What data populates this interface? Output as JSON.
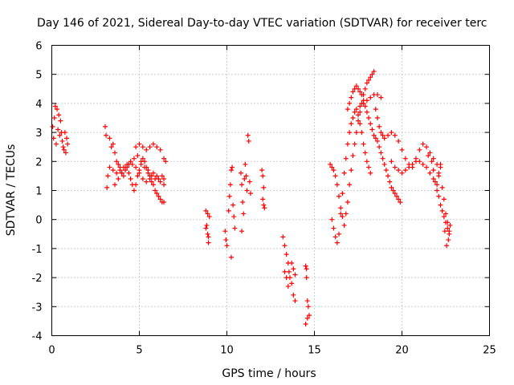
{
  "chart_data": {
    "type": "scatter",
    "title": "Day 146 of 2021, Sidereal Day-to-day VTEC variation (SDTVAR) for receiver terc",
    "xlabel": "GPS time / hours",
    "ylabel": "SDTVAR / TECUs",
    "xlim": [
      0,
      25
    ],
    "ylim": [
      -4,
      6
    ],
    "xticks": [
      0,
      5,
      10,
      15,
      20,
      25
    ],
    "yticks": [
      -4,
      -3,
      -2,
      -1,
      0,
      1,
      2,
      3,
      4,
      5,
      6
    ],
    "grid": true,
    "marker": "+",
    "color": "#ff0000",
    "series": [
      {
        "name": "SDTVAR",
        "points": [
          [
            0.05,
            3.2
          ],
          [
            0.1,
            2.8
          ],
          [
            0.15,
            3.5
          ],
          [
            0.2,
            3.9
          ],
          [
            0.25,
            2.6
          ],
          [
            0.3,
            3.8
          ],
          [
            0.35,
            3.1
          ],
          [
            0.4,
            3.6
          ],
          [
            0.45,
            2.9
          ],
          [
            0.5,
            3.4
          ],
          [
            0.55,
            3.0
          ],
          [
            0.6,
            2.7
          ],
          [
            0.65,
            2.5
          ],
          [
            0.7,
            2.4
          ],
          [
            0.75,
            3.0
          ],
          [
            0.8,
            2.3
          ],
          [
            0.85,
            2.8
          ],
          [
            0.9,
            2.6
          ],
          [
            3.05,
            3.2
          ],
          [
            3.1,
            2.9
          ],
          [
            3.15,
            1.1
          ],
          [
            3.2,
            1.5
          ],
          [
            3.3,
            2.8
          ],
          [
            3.4,
            2.5
          ],
          [
            3.5,
            2.6
          ],
          [
            3.6,
            2.3
          ],
          [
            3.7,
            2.0
          ],
          [
            3.8,
            1.9
          ],
          [
            3.9,
            1.8
          ],
          [
            4.0,
            1.6
          ],
          [
            4.1,
            1.5
          ],
          [
            4.2,
            1.7
          ],
          [
            4.3,
            1.8
          ],
          [
            4.4,
            1.6
          ],
          [
            4.5,
            1.4
          ],
          [
            4.6,
            1.2
          ],
          [
            4.7,
            1.0
          ],
          [
            4.8,
            1.2
          ],
          [
            4.9,
            1.5
          ],
          [
            5.0,
            1.7
          ],
          [
            5.1,
            1.9
          ],
          [
            5.2,
            2.1
          ],
          [
            5.3,
            2.0
          ],
          [
            5.4,
            1.8
          ],
          [
            5.5,
            1.7
          ],
          [
            5.6,
            1.5
          ],
          [
            5.7,
            1.3
          ],
          [
            5.8,
            1.2
          ],
          [
            5.9,
            1.0
          ],
          [
            6.0,
            0.9
          ],
          [
            6.1,
            0.8
          ],
          [
            6.2,
            0.7
          ],
          [
            6.3,
            0.6
          ],
          [
            6.4,
            0.6
          ],
          [
            3.3,
            1.8
          ],
          [
            3.5,
            1.7
          ],
          [
            3.7,
            1.6
          ],
          [
            3.9,
            1.7
          ],
          [
            4.1,
            1.8
          ],
          [
            4.3,
            1.9
          ],
          [
            4.5,
            2.0
          ],
          [
            4.7,
            2.1
          ],
          [
            4.9,
            2.2
          ],
          [
            5.1,
            2.0
          ],
          [
            5.3,
            1.8
          ],
          [
            5.5,
            1.6
          ],
          [
            5.7,
            1.5
          ],
          [
            5.9,
            1.4
          ],
          [
            6.1,
            1.4
          ],
          [
            6.3,
            1.5
          ],
          [
            6.4,
            1.4
          ],
          [
            3.6,
            1.2
          ],
          [
            3.8,
            1.4
          ],
          [
            4.0,
            1.6
          ],
          [
            4.2,
            1.8
          ],
          [
            4.4,
            1.9
          ],
          [
            4.6,
            1.9
          ],
          [
            4.8,
            1.8
          ],
          [
            5.0,
            1.6
          ],
          [
            5.2,
            1.4
          ],
          [
            5.4,
            1.3
          ],
          [
            5.6,
            1.4
          ],
          [
            5.8,
            1.6
          ],
          [
            6.0,
            1.5
          ],
          [
            6.2,
            1.3
          ],
          [
            6.4,
            1.2
          ],
          [
            4.8,
            2.5
          ],
          [
            5.0,
            2.6
          ],
          [
            5.2,
            2.5
          ],
          [
            5.4,
            2.4
          ],
          [
            5.6,
            2.5
          ],
          [
            5.8,
            2.6
          ],
          [
            6.0,
            2.5
          ],
          [
            6.2,
            2.4
          ],
          [
            6.4,
            2.1
          ],
          [
            6.5,
            2.0
          ],
          [
            8.8,
            0.3
          ],
          [
            8.85,
            -0.2
          ],
          [
            8.9,
            -0.5
          ],
          [
            8.95,
            -0.8
          ],
          [
            9.0,
            0.1
          ],
          [
            8.8,
            -0.3
          ],
          [
            8.9,
            0.2
          ],
          [
            8.95,
            -0.6
          ],
          [
            9.9,
            -0.4
          ],
          [
            9.95,
            -0.7
          ],
          [
            10.0,
            -0.9
          ],
          [
            10.1,
            0.3
          ],
          [
            10.15,
            0.8
          ],
          [
            10.2,
            1.2
          ],
          [
            10.25,
            1.7
          ],
          [
            10.3,
            1.8
          ],
          [
            10.35,
            0.5
          ],
          [
            10.4,
            0.1
          ],
          [
            10.45,
            -0.3
          ],
          [
            10.25,
            -1.3
          ],
          [
            10.8,
            1.6
          ],
          [
            10.85,
            1.2
          ],
          [
            10.9,
            0.6
          ],
          [
            10.95,
            0.2
          ],
          [
            11.0,
            1.4
          ],
          [
            11.05,
            1.9
          ],
          [
            11.1,
            1.5
          ],
          [
            11.15,
            1.0
          ],
          [
            11.2,
            2.9
          ],
          [
            11.25,
            2.7
          ],
          [
            11.3,
            1.3
          ],
          [
            11.35,
            0.9
          ],
          [
            10.85,
            -0.4
          ],
          [
            12.0,
            1.7
          ],
          [
            12.05,
            1.5
          ],
          [
            12.1,
            0.5
          ],
          [
            12.15,
            0.4
          ],
          [
            12.1,
            1.1
          ],
          [
            12.05,
            0.7
          ],
          [
            13.2,
            -0.6
          ],
          [
            13.3,
            -0.9
          ],
          [
            13.4,
            -1.2
          ],
          [
            13.5,
            -1.5
          ],
          [
            13.55,
            -1.8
          ],
          [
            13.6,
            -2.0
          ],
          [
            13.7,
            -2.2
          ],
          [
            13.8,
            -2.6
          ],
          [
            13.9,
            -2.8
          ],
          [
            13.7,
            -1.5
          ],
          [
            13.8,
            -1.7
          ],
          [
            13.9,
            -1.9
          ],
          [
            13.3,
            -1.8
          ],
          [
            13.4,
            -2.0
          ],
          [
            13.5,
            -2.3
          ],
          [
            14.5,
            -1.6
          ],
          [
            14.55,
            -2.0
          ],
          [
            14.6,
            -2.8
          ],
          [
            14.65,
            -3.0
          ],
          [
            14.7,
            -3.3
          ],
          [
            14.5,
            -3.6
          ],
          [
            14.6,
            -3.4
          ],
          [
            14.55,
            -1.7
          ],
          [
            15.9,
            1.9
          ],
          [
            16.0,
            1.8
          ],
          [
            16.1,
            1.7
          ],
          [
            16.2,
            1.5
          ],
          [
            16.3,
            1.2
          ],
          [
            16.4,
            0.8
          ],
          [
            16.5,
            0.4
          ],
          [
            16.6,
            0.1
          ],
          [
            16.7,
            -0.2
          ],
          [
            16.8,
            0.2
          ],
          [
            16.9,
            0.6
          ],
          [
            17.0,
            1.2
          ],
          [
            17.1,
            1.7
          ],
          [
            17.2,
            2.2
          ],
          [
            17.3,
            2.6
          ],
          [
            17.4,
            3.0
          ],
          [
            17.5,
            3.4
          ],
          [
            17.6,
            3.7
          ],
          [
            17.7,
            4.0
          ],
          [
            17.8,
            4.3
          ],
          [
            17.9,
            4.5
          ],
          [
            18.0,
            4.7
          ],
          [
            18.1,
            4.8
          ],
          [
            18.2,
            4.9
          ],
          [
            18.3,
            5.0
          ],
          [
            18.4,
            5.1
          ],
          [
            16.0,
            0.0
          ],
          [
            16.1,
            -0.3
          ],
          [
            16.2,
            -0.6
          ],
          [
            16.3,
            -0.8
          ],
          [
            16.4,
            -0.5
          ],
          [
            16.5,
            0.2
          ],
          [
            16.6,
            0.9
          ],
          [
            16.7,
            1.6
          ],
          [
            16.8,
            2.1
          ],
          [
            16.9,
            2.6
          ],
          [
            17.0,
            3.0
          ],
          [
            17.1,
            3.3
          ],
          [
            17.2,
            3.5
          ],
          [
            17.3,
            3.7
          ],
          [
            17.4,
            3.8
          ],
          [
            17.5,
            3.6
          ],
          [
            17.6,
            3.3
          ],
          [
            17.7,
            3.0
          ],
          [
            17.8,
            2.6
          ],
          [
            17.9,
            2.3
          ],
          [
            18.0,
            2.0
          ],
          [
            18.1,
            1.8
          ],
          [
            18.2,
            1.6
          ],
          [
            16.9,
            3.8
          ],
          [
            17.0,
            4.0
          ],
          [
            17.1,
            4.2
          ],
          [
            17.2,
            4.4
          ],
          [
            17.3,
            4.5
          ],
          [
            17.4,
            4.6
          ],
          [
            17.5,
            4.5
          ],
          [
            17.6,
            4.4
          ],
          [
            17.7,
            4.3
          ],
          [
            17.8,
            4.1
          ],
          [
            17.9,
            3.9
          ],
          [
            18.0,
            3.7
          ],
          [
            18.1,
            3.5
          ],
          [
            18.2,
            3.3
          ],
          [
            18.3,
            3.1
          ],
          [
            18.4,
            2.9
          ],
          [
            18.5,
            2.8
          ],
          [
            18.6,
            2.7
          ],
          [
            18.7,
            2.5
          ],
          [
            18.8,
            2.3
          ],
          [
            18.9,
            2.1
          ],
          [
            19.0,
            1.9
          ],
          [
            19.1,
            1.7
          ],
          [
            19.2,
            1.5
          ],
          [
            19.3,
            1.3
          ],
          [
            19.4,
            1.1
          ],
          [
            19.5,
            1.0
          ],
          [
            19.6,
            0.9
          ],
          [
            19.7,
            0.8
          ],
          [
            19.8,
            0.7
          ],
          [
            19.9,
            0.6
          ],
          [
            17.6,
            3.9
          ],
          [
            17.8,
            4.0
          ],
          [
            18.0,
            4.1
          ],
          [
            18.2,
            4.2
          ],
          [
            18.4,
            4.3
          ],
          [
            18.6,
            4.3
          ],
          [
            18.8,
            4.2
          ],
          [
            18.5,
            3.8
          ],
          [
            18.6,
            3.5
          ],
          [
            18.7,
            3.2
          ],
          [
            18.8,
            3.0
          ],
          [
            18.9,
            2.9
          ],
          [
            19.0,
            2.8
          ],
          [
            19.2,
            2.9
          ],
          [
            19.4,
            3.0
          ],
          [
            19.6,
            2.9
          ],
          [
            19.8,
            2.7
          ],
          [
            20.0,
            2.4
          ],
          [
            20.2,
            2.1
          ],
          [
            20.4,
            1.9
          ],
          [
            20.6,
            1.8
          ],
          [
            20.8,
            2.1
          ],
          [
            21.0,
            2.4
          ],
          [
            21.2,
            2.6
          ],
          [
            21.4,
            2.5
          ],
          [
            21.6,
            2.3
          ],
          [
            21.8,
            2.1
          ],
          [
            22.0,
            1.9
          ],
          [
            19.4,
            2.0
          ],
          [
            19.6,
            1.8
          ],
          [
            19.8,
            1.7
          ],
          [
            20.0,
            1.6
          ],
          [
            20.2,
            1.7
          ],
          [
            20.4,
            1.8
          ],
          [
            20.6,
            1.9
          ],
          [
            20.8,
            2.0
          ],
          [
            21.0,
            2.0
          ],
          [
            21.2,
            1.9
          ],
          [
            21.4,
            1.8
          ],
          [
            21.6,
            1.6
          ],
          [
            21.8,
            1.4
          ],
          [
            22.0,
            1.2
          ],
          [
            22.1,
            1.5
          ],
          [
            22.2,
            1.8
          ],
          [
            21.5,
            2.2
          ],
          [
            21.7,
            2.0
          ],
          [
            21.8,
            1.7
          ],
          [
            21.9,
            1.3
          ],
          [
            22.0,
            1.0
          ],
          [
            22.1,
            0.8
          ],
          [
            22.2,
            0.5
          ],
          [
            22.3,
            0.3
          ],
          [
            22.4,
            0.1
          ],
          [
            22.5,
            -0.1
          ],
          [
            22.6,
            -0.3
          ],
          [
            22.7,
            -0.5
          ],
          [
            22.75,
            -0.2
          ],
          [
            22.65,
            -0.7
          ],
          [
            22.55,
            -0.9
          ],
          [
            22.45,
            -0.4
          ],
          [
            22.2,
            1.9
          ],
          [
            22.1,
            1.6
          ],
          [
            22.3,
            1.1
          ],
          [
            22.4,
            0.7
          ],
          [
            22.5,
            0.2
          ],
          [
            22.6,
            -0.1
          ],
          [
            22.7,
            -0.4
          ]
        ]
      }
    ]
  }
}
